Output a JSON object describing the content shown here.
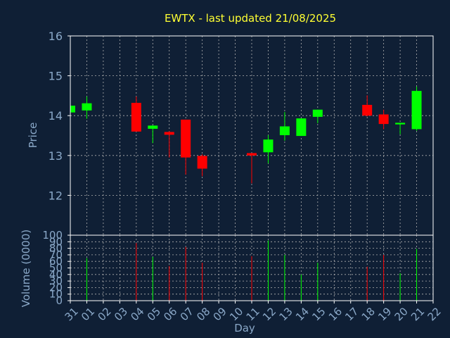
{
  "chart_data": {
    "type": "candlestick",
    "title": "EWTX - last updated 21/08/2025",
    "xlabel": "Day",
    "x_ticks": [
      "31",
      "01",
      "02",
      "03",
      "04",
      "05",
      "06",
      "07",
      "08",
      "09",
      "10",
      "11",
      "12",
      "13",
      "14",
      "15",
      "16",
      "17",
      "18",
      "19",
      "20",
      "21",
      "22"
    ],
    "price": {
      "ylabel": "Price",
      "ylim": [
        11,
        16
      ],
      "yticks": [
        12,
        13,
        14,
        15,
        16
      ],
      "candles": [
        {
          "x": "31",
          "open": 14.08,
          "high": 14.26,
          "low": 14.05,
          "close": 14.25
        },
        {
          "x": "01",
          "open": 14.13,
          "high": 14.48,
          "low": 13.92,
          "close": 14.31
        },
        {
          "x": "04",
          "open": 14.32,
          "high": 14.48,
          "low": 13.6,
          "close": 13.6
        },
        {
          "x": "05",
          "open": 13.67,
          "high": 13.76,
          "low": 13.31,
          "close": 13.75
        },
        {
          "x": "06",
          "open": 13.59,
          "high": 13.61,
          "low": 12.95,
          "close": 13.52
        },
        {
          "x": "07",
          "open": 13.9,
          "high": 13.9,
          "low": 12.52,
          "close": 12.95
        },
        {
          "x": "08",
          "open": 12.99,
          "high": 13.03,
          "low": 12.48,
          "close": 12.67
        },
        {
          "x": "11",
          "open": 13.06,
          "high": 13.06,
          "low": 12.3,
          "close": 13.0
        },
        {
          "x": "12",
          "open": 13.08,
          "high": 13.51,
          "low": 12.8,
          "close": 13.4
        },
        {
          "x": "13",
          "open": 13.51,
          "high": 14.09,
          "low": 13.37,
          "close": 13.73
        },
        {
          "x": "14",
          "open": 13.49,
          "high": 13.93,
          "low": 13.49,
          "close": 13.93
        },
        {
          "x": "15",
          "open": 13.97,
          "high": 14.15,
          "low": 13.81,
          "close": 14.15
        },
        {
          "x": "18",
          "open": 14.27,
          "high": 14.51,
          "low": 13.98,
          "close": 14.0
        },
        {
          "x": "19",
          "open": 14.03,
          "high": 14.15,
          "low": 13.66,
          "close": 13.79
        },
        {
          "x": "20",
          "open": 13.78,
          "high": 13.82,
          "low": 13.53,
          "close": 13.82
        },
        {
          "x": "21",
          "open": 13.66,
          "high": 14.73,
          "low": 13.62,
          "close": 14.62
        }
      ]
    },
    "volume": {
      "ylabel": "Volume (0000)",
      "ylim": [
        0,
        100
      ],
      "yticks": [
        0,
        10,
        20,
        30,
        40,
        50,
        60,
        70,
        80,
        90,
        100
      ],
      "bars": [
        {
          "x": "01",
          "value": 65,
          "up": true
        },
        {
          "x": "04",
          "value": 88,
          "up": false
        },
        {
          "x": "05",
          "value": 67,
          "up": true
        },
        {
          "x": "06",
          "value": 53,
          "up": false
        },
        {
          "x": "07",
          "value": 82,
          "up": false
        },
        {
          "x": "08",
          "value": 58,
          "up": false
        },
        {
          "x": "11",
          "value": 68,
          "up": false
        },
        {
          "x": "12",
          "value": 92,
          "up": true
        },
        {
          "x": "13",
          "value": 70,
          "up": true
        },
        {
          "x": "14",
          "value": 40,
          "up": true
        },
        {
          "x": "15",
          "value": 58,
          "up": true
        },
        {
          "x": "18",
          "value": 52,
          "up": false
        },
        {
          "x": "19",
          "value": 70,
          "up": false
        },
        {
          "x": "20",
          "value": 42,
          "up": true
        },
        {
          "x": "21",
          "value": 79,
          "up": true
        }
      ]
    },
    "grid": true,
    "colors": {
      "background": "#0f1f35",
      "up": "#00ff00",
      "down": "#ff0000",
      "title": "#ffff33",
      "axis_text": "#8aa8c8",
      "grid": "#b0b0b0",
      "frame": "#ffffff"
    }
  }
}
